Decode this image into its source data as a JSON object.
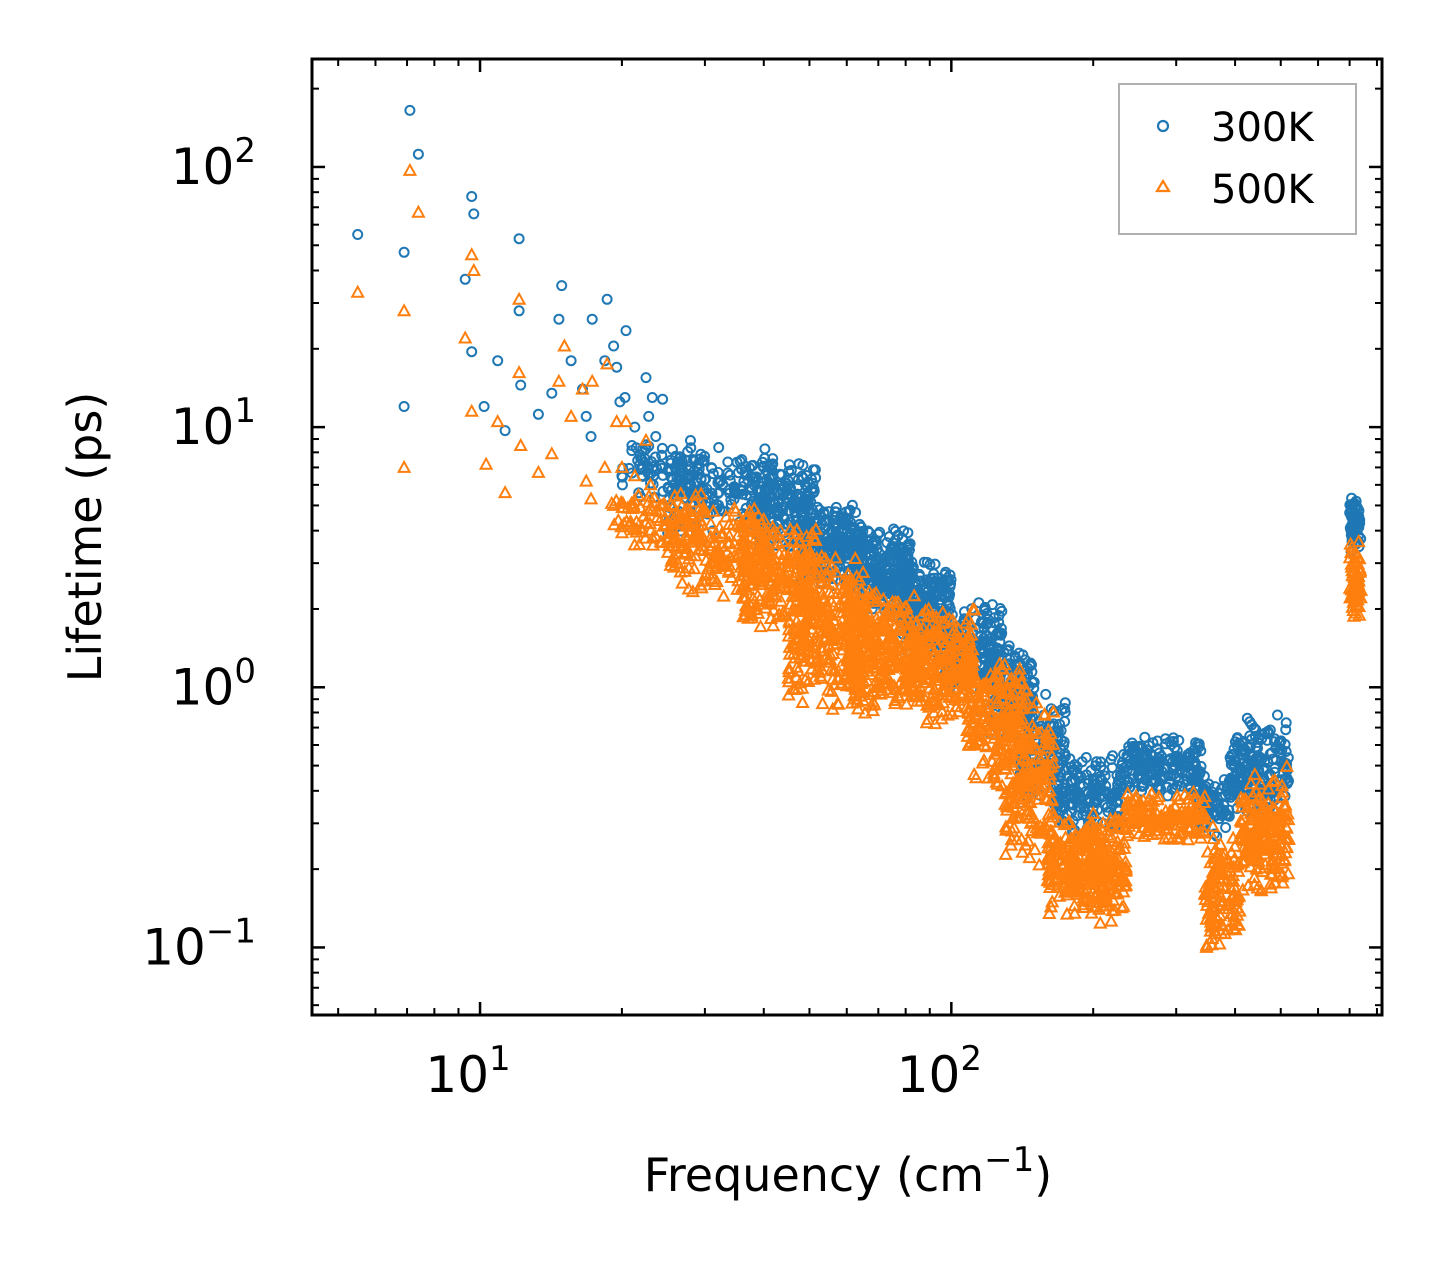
{
  "chart_data": {
    "type": "scatter",
    "title": "",
    "xlabel": "Frequency (cm",
    "xlabel_sup": "−1",
    "xlabel_tail": ")",
    "ylabel": "Lifetime (ps)",
    "xscale": "log",
    "yscale": "log",
    "xlim": [
      4.4,
      820
    ],
    "ylim": [
      0.055,
      260
    ],
    "x_ticks": [
      {
        "value": 10,
        "base": "10",
        "exp": "1"
      },
      {
        "value": 100,
        "base": "10",
        "exp": "2"
      }
    ],
    "y_ticks": [
      {
        "value": 0.1,
        "base": "10",
        "exp": "−1"
      },
      {
        "value": 1,
        "base": "10",
        "exp": "0"
      },
      {
        "value": 10,
        "base": "10",
        "exp": "1"
      },
      {
        "value": 100,
        "base": "10",
        "exp": "2"
      }
    ],
    "legend_position": "top-right",
    "series": [
      {
        "name": "300K",
        "color": "#1f77b4",
        "marker": "circle",
        "points": [
          [
            5.5,
            55
          ],
          [
            6.9,
            47
          ],
          [
            7.1,
            165
          ],
          [
            7.4,
            112
          ],
          [
            6.9,
            12
          ],
          [
            9.3,
            37
          ],
          [
            9.6,
            77
          ],
          [
            9.7,
            66
          ],
          [
            9.6,
            19.5
          ],
          [
            10.9,
            18
          ],
          [
            11.3,
            9.7
          ],
          [
            10.2,
            12
          ],
          [
            12.1,
            53
          ],
          [
            12.1,
            28
          ],
          [
            12.2,
            14.5
          ],
          [
            13.3,
            11.2
          ],
          [
            14.2,
            13.5
          ],
          [
            14.9,
            35
          ],
          [
            14.7,
            26
          ],
          [
            15.6,
            18
          ],
          [
            16.5,
            14
          ],
          [
            17.3,
            26
          ],
          [
            18.6,
            31
          ],
          [
            19.2,
            20.5
          ],
          [
            20.4,
            23.5
          ],
          [
            16.8,
            11
          ],
          [
            17.2,
            9.2
          ],
          [
            18.4,
            18
          ],
          [
            19.5,
            17
          ],
          [
            19.8,
            12.5
          ],
          [
            20.3,
            13
          ],
          [
            21.3,
            10
          ],
          [
            22.5,
            15.5
          ],
          [
            23.2,
            13
          ],
          [
            24.4,
            12.8
          ],
          [
            22.8,
            11
          ],
          [
            23.6,
            9.2
          ],
          [
            21.0,
            8.5
          ],
          [
            20.0,
            6.5
          ],
          [
            25.6,
            8.2
          ]
        ],
        "clusters": [
          {
            "x": [
              20,
              30
            ],
            "y": [
              5,
              9.5
            ],
            "n": 90
          },
          {
            "x": [
              25,
              42
            ],
            "y": [
              3.8,
              8.5
            ],
            "n": 180
          },
          {
            "x": [
              38,
              52
            ],
            "y": [
              3.2,
              7.8
            ],
            "n": 200
          },
          {
            "x": [
              48,
              65
            ],
            "y": [
              2.4,
              5.2
            ],
            "n": 240
          },
          {
            "x": [
              62,
              82
            ],
            "y": [
              1.8,
              4.2
            ],
            "n": 260
          },
          {
            "x": [
              78,
              100
            ],
            "y": [
              1.3,
              3.2
            ],
            "n": 240
          },
          {
            "x": [
              96,
              128
            ],
            "y": [
              0.9,
              2.2
            ],
            "n": 220
          },
          {
            "x": [
              120,
              150
            ],
            "y": [
              0.6,
              1.6
            ],
            "n": 160
          },
          {
            "x": [
              140,
              175
            ],
            "y": [
              0.32,
              1.0
            ],
            "n": 130
          },
          {
            "x": [
              165,
              230
            ],
            "y": [
              0.26,
              0.58
            ],
            "n": 190
          },
          {
            "x": [
              230,
              340
            ],
            "y": [
              0.38,
              0.65
            ],
            "n": 200
          },
          {
            "x": [
              330,
              390
            ],
            "y": [
              0.26,
              0.48
            ],
            "n": 90
          },
          {
            "x": [
              390,
              520
            ],
            "y": [
              0.3,
              0.8
            ],
            "n": 200
          },
          {
            "x": [
              700,
              740
            ],
            "y": [
              3.2,
              5.6
            ],
            "n": 70
          }
        ]
      },
      {
        "name": "500K",
        "color": "#ff7f0e",
        "marker": "triangle",
        "points": [
          [
            5.5,
            33
          ],
          [
            6.9,
            28
          ],
          [
            7.1,
            97
          ],
          [
            7.4,
            67
          ],
          [
            6.9,
            7.0
          ],
          [
            9.3,
            22
          ],
          [
            9.6,
            46
          ],
          [
            9.7,
            40
          ],
          [
            9.6,
            11.5
          ],
          [
            10.3,
            7.2
          ],
          [
            10.9,
            10.5
          ],
          [
            11.3,
            5.6
          ],
          [
            12.1,
            31
          ],
          [
            12.1,
            16.2
          ],
          [
            12.2,
            8.5
          ],
          [
            13.3,
            6.7
          ],
          [
            14.2,
            7.9
          ],
          [
            14.7,
            15
          ],
          [
            15.1,
            20.5
          ],
          [
            15.6,
            11
          ],
          [
            16.5,
            14
          ],
          [
            17.3,
            15
          ],
          [
            18.6,
            17.5
          ],
          [
            19.5,
            10.5
          ],
          [
            20.4,
            10.5
          ],
          [
            16.8,
            6.2
          ],
          [
            17.2,
            5.3
          ],
          [
            18.4,
            7.0
          ],
          [
            19.2,
            5.0
          ],
          [
            20.0,
            7.0
          ],
          [
            21.3,
            6.5
          ],
          [
            22.5,
            8.9
          ],
          [
            23.0,
            6.0
          ],
          [
            24.4,
            5.0
          ],
          [
            23.6,
            3.8
          ]
        ],
        "clusters": [
          {
            "x": [
              19,
              30
            ],
            "y": [
              3.2,
              5.8
            ],
            "n": 90
          },
          {
            "x": [
              25,
              40
            ],
            "y": [
              2.2,
              5.2
            ],
            "n": 180
          },
          {
            "x": [
              36,
              52
            ],
            "y": [
              1.6,
              4.6
            ],
            "n": 220
          },
          {
            "x": [
              45,
              65
            ],
            "y": [
              0.75,
              3.6
            ],
            "n": 300
          },
          {
            "x": [
              60,
              85
            ],
            "y": [
              0.75,
              2.5
            ],
            "n": 300
          },
          {
            "x": [
              80,
              112
            ],
            "y": [
              0.7,
              2.2
            ],
            "n": 260
          },
          {
            "x": [
              108,
              145
            ],
            "y": [
              0.4,
              1.4
            ],
            "n": 220
          },
          {
            "x": [
              130,
              165
            ],
            "y": [
              0.2,
              0.9
            ],
            "n": 180
          },
          {
            "x": [
              160,
              215
            ],
            "y": [
              0.13,
              0.32
            ],
            "n": 220
          },
          {
            "x": [
              190,
              235
            ],
            "y": [
              0.12,
              0.36
            ],
            "n": 130
          },
          {
            "x": [
              235,
              345
            ],
            "y": [
              0.25,
              0.4
            ],
            "n": 160
          },
          {
            "x": [
              345,
              410
            ],
            "y": [
              0.09,
              0.3
            ],
            "n": 130
          },
          {
            "x": [
              410,
              520
            ],
            "y": [
              0.15,
              0.5
            ],
            "n": 200
          },
          {
            "x": [
              700,
              740
            ],
            "y": [
              1.8,
              3.8
            ],
            "n": 70
          }
        ]
      }
    ]
  }
}
